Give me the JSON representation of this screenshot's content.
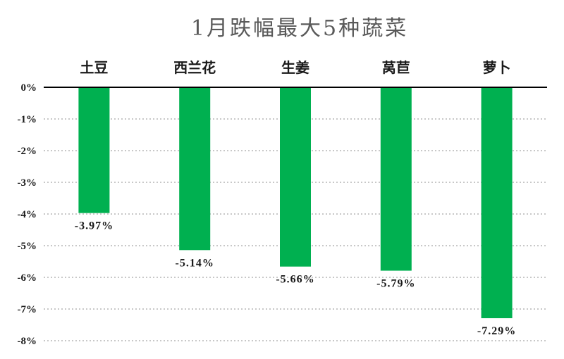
{
  "chart_data": {
    "type": "bar",
    "title": "1月跌幅最大5种蔬菜",
    "categories": [
      "土豆",
      "西兰花",
      "生姜",
      "莴苣",
      "萝卜"
    ],
    "values": [
      -3.97,
      -5.14,
      -5.66,
      -5.79,
      -7.29
    ],
    "data_labels": [
      "-3.97%",
      "-5.14%",
      "-5.66%",
      "-5.79%",
      "-7.29%"
    ],
    "yticks": [
      "0%",
      "-1%",
      "-2%",
      "-3%",
      "-4%",
      "-5%",
      "-6%",
      "-7%",
      "-8%"
    ],
    "ylim": [
      -8,
      0
    ],
    "xlabel": "",
    "ylabel": "",
    "grid": true,
    "category_axis_position": "top",
    "bar_color": "#00b050",
    "gridline_color": "#a6a6a6",
    "axis_color": "#000000"
  }
}
